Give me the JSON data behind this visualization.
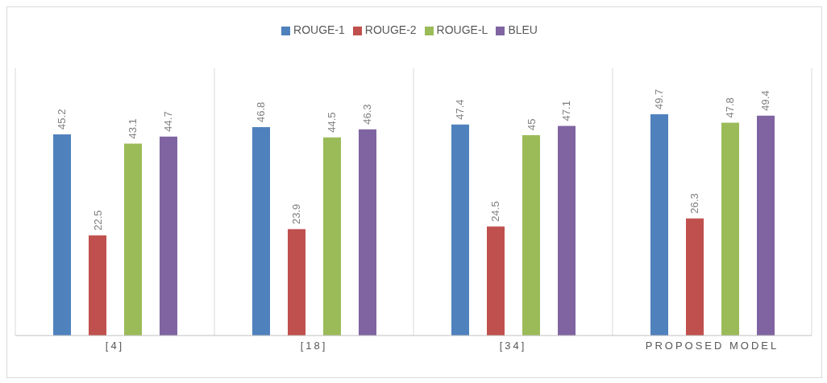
{
  "chart_data": {
    "type": "bar",
    "categories": [
      "[4]",
      "[18]",
      "[34]",
      "PROPOSED MODEL"
    ],
    "series": [
      {
        "name": "ROUGE-1",
        "color": "#4f81bd",
        "values": [
          45.2,
          46.8,
          47.4,
          49.7
        ]
      },
      {
        "name": "ROUGE-2",
        "color": "#c0504d",
        "values": [
          22.5,
          23.9,
          24.5,
          26.3
        ]
      },
      {
        "name": "ROUGE-L",
        "color": "#9bbb59",
        "values": [
          43.1,
          44.5,
          45,
          47.8
        ]
      },
      {
        "name": "BLEU",
        "color": "#8064a2",
        "values": [
          44.7,
          46.3,
          47.1,
          49.4
        ]
      }
    ],
    "data_labels": true,
    "grid": "x",
    "legend": "top",
    "tick_labels": "x"
  }
}
